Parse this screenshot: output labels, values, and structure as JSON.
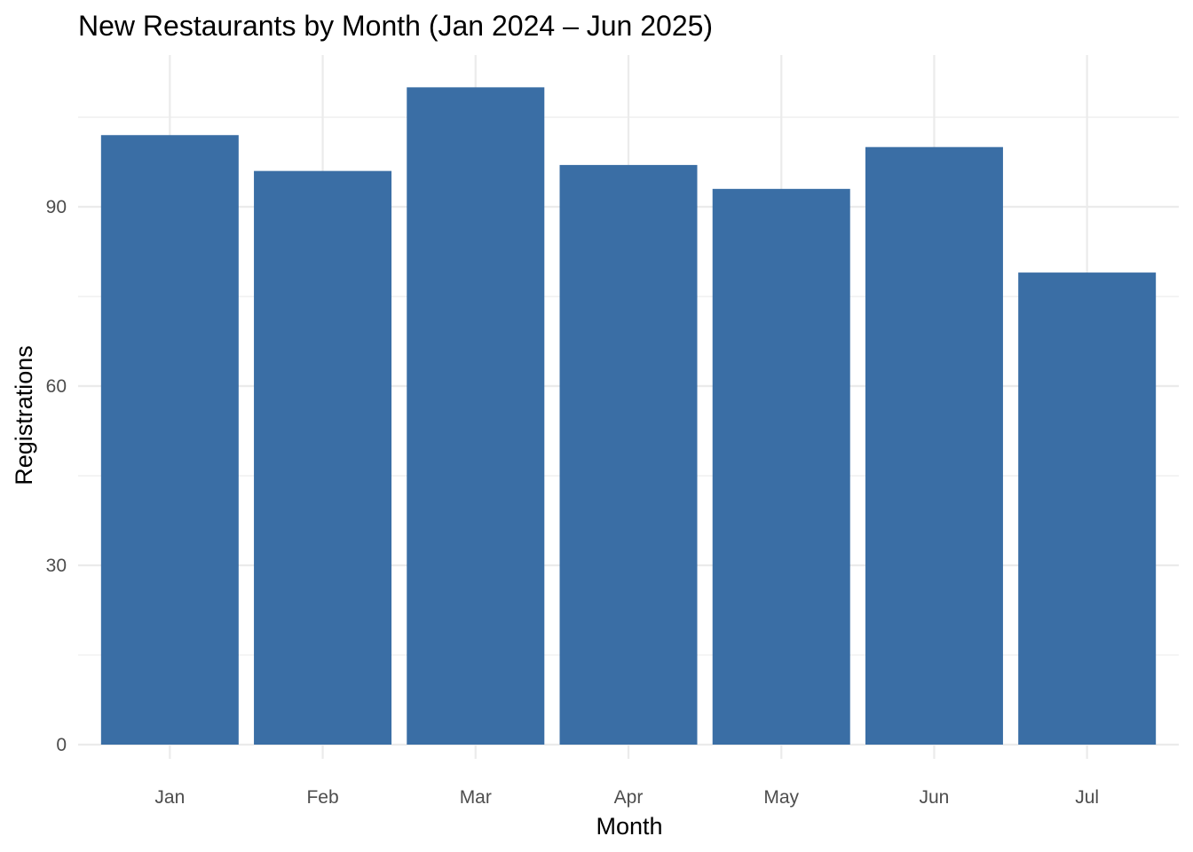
{
  "chart_data": {
    "type": "bar",
    "title": "New Restaurants by Month (Jan 2024 – Jun 2025)",
    "xlabel": "Month",
    "ylabel": "Registrations",
    "categories": [
      "Jan",
      "Feb",
      "Mar",
      "Apr",
      "May",
      "Jun",
      "Jul"
    ],
    "values": [
      102,
      96,
      110,
      97,
      93,
      100,
      79
    ],
    "ylim": [
      0,
      115
    ],
    "yticks": [
      0,
      30,
      60,
      90
    ],
    "ytick_labels": [
      "0",
      "30",
      "60",
      "90"
    ],
    "grid": true,
    "legend": "none",
    "bar_color": "#3a6ea5"
  }
}
